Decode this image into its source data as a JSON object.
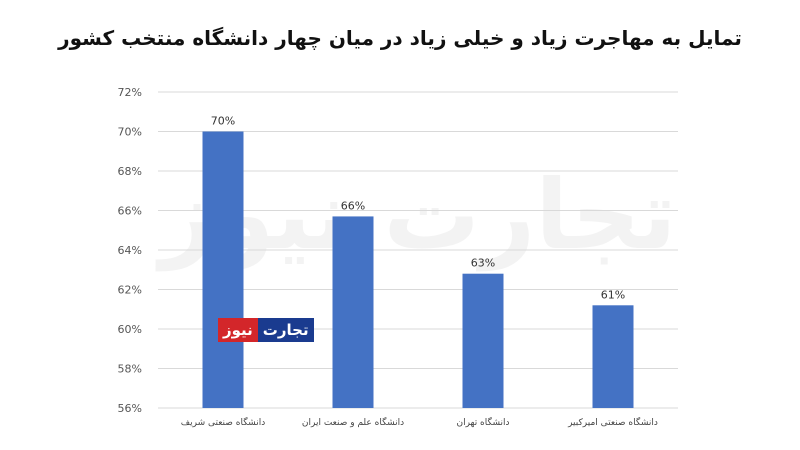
{
  "chart_data": {
    "type": "bar",
    "title": "تمایل به مهاجرت زیاد و خیلی زیاد در میان چهار دانشگاه منتخب کشور",
    "categories": [
      "دانشگاه صنعتی شریف",
      "دانشگاه علم و صنعت ایران",
      "دانشگاه تهران",
      "دانشگاه صنعتی امیرکبیر"
    ],
    "values": [
      70,
      65.7,
      62.8,
      61.2
    ],
    "data_labels": [
      "70%",
      "66%",
      "63%",
      "61%"
    ],
    "ylim": [
      56,
      72
    ],
    "yticks": [
      56,
      58,
      60,
      62,
      64,
      66,
      68,
      70,
      72
    ],
    "ytick_labels": [
      "56%",
      "58%",
      "60%",
      "62%",
      "64%",
      "66%",
      "68%",
      "70%",
      "72%"
    ],
    "grid": true,
    "legend": "none",
    "bar_color": "#4472c4",
    "grid_color": "#d9d9d9"
  },
  "branding": {
    "watermark": "تجارت نیوز",
    "logo_part_a": "تجارت",
    "logo_part_b": "نیوز",
    "logo_color_a": "#1a3b8f",
    "logo_color_b": "#d3262a"
  }
}
